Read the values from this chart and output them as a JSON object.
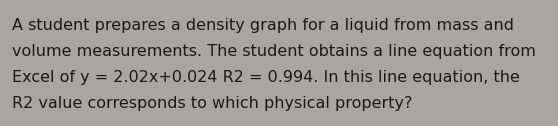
{
  "text_line1": "A student prepares a density graph for a liquid from mass and",
  "text_line2": "volume measurements. The student obtains a line equation from",
  "text_line3": "Excel of y = 2.02x+0.024 R2 = 0.994. In this line equation, the",
  "text_line4": "R2 value corresponds to which physical property?",
  "background_color": "#a8a6a4",
  "text_color": "#1a1a1a",
  "font_size": 11.5,
  "fig_width": 5.58,
  "fig_height": 1.26,
  "dpi": 100
}
